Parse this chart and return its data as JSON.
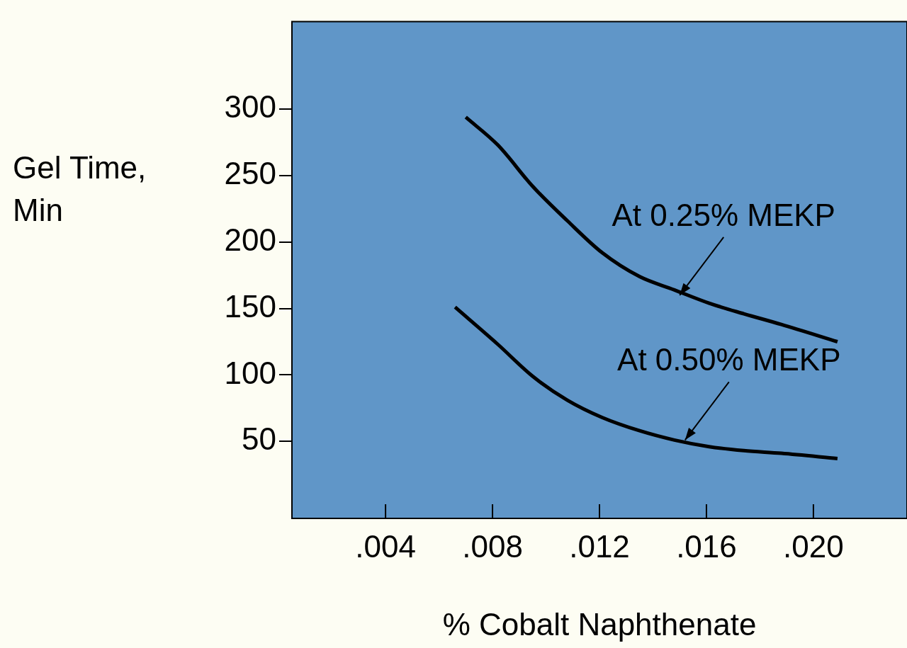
{
  "chart_data": {
    "type": "line",
    "xlabel": "% Cobalt Naphthenate",
    "ylabel": "Gel Time, Min",
    "xlim": [
      0.0005,
      0.0235
    ],
    "xticks": [
      {
        "value": 0.004,
        "label": ".004"
      },
      {
        "value": 0.008,
        "label": ".008"
      },
      {
        "value": 0.012,
        "label": ".012"
      },
      {
        "value": 0.016,
        "label": ".016"
      },
      {
        "value": 0.02,
        "label": ".020"
      }
    ],
    "ylim": [
      -8,
      366
    ],
    "yticks": [
      50,
      100,
      150,
      200,
      250,
      300
    ],
    "grid": false,
    "legend": false,
    "marker": "none",
    "line_style": "solid",
    "series": [
      {
        "color": "#000000",
        "x": [
          0.007,
          0.0082,
          0.0095,
          0.0108,
          0.0121,
          0.0135,
          0.0148,
          0.0161,
          0.0174,
          0.0188,
          0.0209
        ],
        "values": [
          294,
          273,
          242,
          216,
          192,
          174,
          164,
          154,
          146,
          138,
          125
        ]
      },
      {
        "color": "#000000",
        "x": [
          0.0066,
          0.0082,
          0.0095,
          0.0108,
          0.0121,
          0.0135,
          0.0148,
          0.0161,
          0.0174,
          0.0188,
          0.0209
        ],
        "values": [
          151,
          123,
          99,
          81,
          68,
          58,
          51,
          46,
          43,
          41,
          37
        ]
      }
    ],
    "annotations": [
      {
        "text": "At 0.25% MEKP",
        "x": 0.015,
        "y": 160
      },
      {
        "text": "At 0.50% MEKP",
        "x": 0.0152,
        "y": 51
      }
    ]
  }
}
